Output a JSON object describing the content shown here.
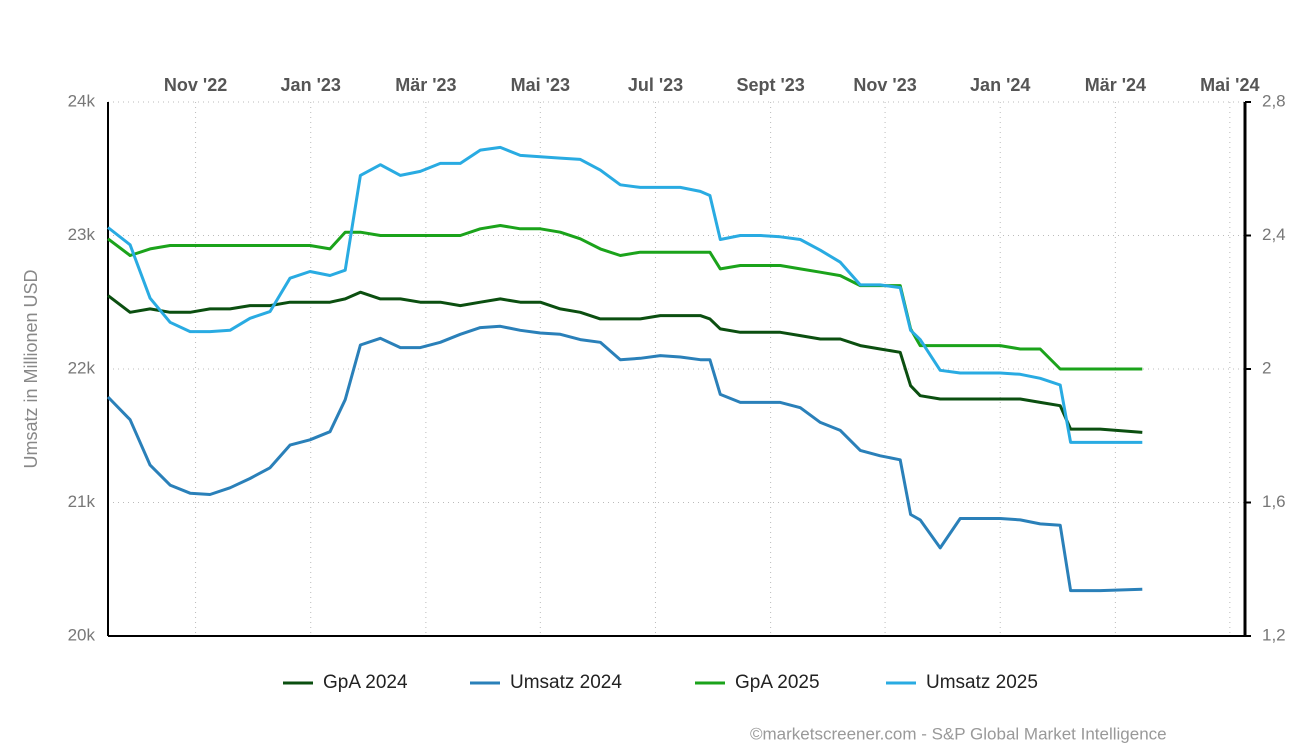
{
  "chart_data": {
    "type": "line",
    "y_label": "Umsatz in Millionen USD",
    "source": "©marketscreener.com - S&P Global Market Intelligence",
    "grid": true,
    "legend": "bottom",
    "xlim": [
      2022.706,
      2024.355
    ],
    "xticks": [
      {
        "value": 2022.833,
        "label": "Nov '22"
      },
      {
        "value": 2023.0,
        "label": "Jan '23"
      },
      {
        "value": 2023.167,
        "label": "Mär '23"
      },
      {
        "value": 2023.333,
        "label": "Mai '23"
      },
      {
        "value": 2023.5,
        "label": "Jul '23"
      },
      {
        "value": 2023.667,
        "label": "Sept '23"
      },
      {
        "value": 2023.833,
        "label": "Nov '23"
      },
      {
        "value": 2024.0,
        "label": "Jan '24"
      },
      {
        "value": 2024.167,
        "label": "Mär '24"
      },
      {
        "value": 2024.333,
        "label": "Mai '24"
      }
    ],
    "ylim": [
      20000,
      24000
    ],
    "yticks": [
      {
        "value": 20000,
        "label": "20k"
      },
      {
        "value": 21000,
        "label": "21k"
      },
      {
        "value": 22000,
        "label": "22k"
      },
      {
        "value": 23000,
        "label": "23k"
      },
      {
        "value": 24000,
        "label": "24k"
      }
    ],
    "y2lim": [
      1.2,
      2.8
    ],
    "y2ticks": [
      {
        "value": 1.2,
        "label": "1,2"
      },
      {
        "value": 1.6,
        "label": "1,6"
      },
      2,
      {
        "value": 2.4,
        "label": "2,4"
      },
      {
        "value": 2.8,
        "label": "2,8"
      }
    ],
    "x": [
      2022.706,
      2022.738,
      2022.767,
      2022.796,
      2022.825,
      2022.854,
      2022.883,
      2022.912,
      2022.941,
      2022.97,
      2022.999,
      2023.028,
      2023.05,
      2023.072,
      2023.101,
      2023.13,
      2023.159,
      2023.188,
      2023.217,
      2023.246,
      2023.275,
      2023.304,
      2023.333,
      2023.362,
      2023.391,
      2023.42,
      2023.449,
      2023.478,
      2023.507,
      2023.536,
      2023.565,
      2023.579,
      2023.594,
      2023.623,
      2023.652,
      2023.681,
      2023.71,
      2023.739,
      2023.768,
      2023.797,
      2023.826,
      2023.855,
      2023.87,
      2023.884,
      2023.913,
      2023.942,
      2023.971,
      2024.0,
      2024.029,
      2024.058,
      2024.087,
      2024.102,
      2024.145,
      2024.206
    ],
    "series": [
      {
        "name": "GpA 2024",
        "color": "#0b4f10",
        "axis": "y2",
        "values": [
          2.22,
          2.17,
          2.18,
          2.17,
          2.17,
          2.18,
          2.18,
          2.19,
          2.19,
          2.2,
          2.2,
          2.2,
          2.21,
          2.23,
          2.21,
          2.21,
          2.2,
          2.2,
          2.19,
          2.2,
          2.21,
          2.2,
          2.2,
          2.18,
          2.17,
          2.15,
          2.15,
          2.15,
          2.16,
          2.16,
          2.16,
          2.15,
          2.12,
          2.11,
          2.11,
          2.11,
          2.1,
          2.09,
          2.09,
          2.07,
          2.06,
          2.05,
          1.95,
          1.92,
          1.91,
          1.91,
          1.91,
          1.91,
          1.91,
          1.9,
          1.89,
          1.82,
          1.82,
          1.81
        ]
      },
      {
        "name": "Umsatz 2024",
        "color": "#2a80b9",
        "values": [
          21790,
          21620,
          21280,
          21130,
          21070,
          21060,
          21110,
          21180,
          21260,
          21430,
          21470,
          21530,
          21770,
          22180,
          22230,
          22160,
          22160,
          22200,
          22260,
          22310,
          22320,
          22290,
          22270,
          22260,
          22220,
          22200,
          22070,
          22080,
          22100,
          22090,
          22070,
          22070,
          21810,
          21750,
          21750,
          21750,
          21710,
          21600,
          21540,
          21390,
          21350,
          21320,
          20910,
          20870,
          20660,
          20880,
          20880,
          20880,
          20870,
          20840,
          20830,
          20340,
          20340,
          20350
        ]
      },
      {
        "name": "GpA 2025",
        "color": "#1ba31b",
        "axis": "y2",
        "values": [
          2.39,
          2.34,
          2.36,
          2.37,
          2.37,
          2.37,
          2.37,
          2.37,
          2.37,
          2.37,
          2.37,
          2.36,
          2.41,
          2.41,
          2.4,
          2.4,
          2.4,
          2.4,
          2.4,
          2.42,
          2.43,
          2.42,
          2.42,
          2.41,
          2.39,
          2.36,
          2.34,
          2.35,
          2.35,
          2.35,
          2.35,
          2.35,
          2.3,
          2.31,
          2.31,
          2.31,
          2.3,
          2.29,
          2.28,
          2.25,
          2.25,
          2.25,
          2.12,
          2.07,
          2.07,
          2.07,
          2.07,
          2.07,
          2.06,
          2.06,
          2.0,
          2.0,
          2.0,
          2.0
        ]
      },
      {
        "name": "Umsatz 2025",
        "color": "#29abe2",
        "values": [
          23060,
          22930,
          22530,
          22350,
          22280,
          22280,
          22290,
          22380,
          22430,
          22680,
          22730,
          22700,
          22740,
          23450,
          23530,
          23450,
          23480,
          23540,
          23540,
          23640,
          23660,
          23600,
          23590,
          23580,
          23570,
          23490,
          23380,
          23360,
          23360,
          23360,
          23330,
          23300,
          22970,
          23000,
          23000,
          22990,
          22970,
          22890,
          22800,
          22630,
          22630,
          22610,
          22290,
          22220,
          21990,
          21970,
          21970,
          21970,
          21960,
          21930,
          21880,
          21450,
          21450,
          21450
        ]
      }
    ]
  }
}
